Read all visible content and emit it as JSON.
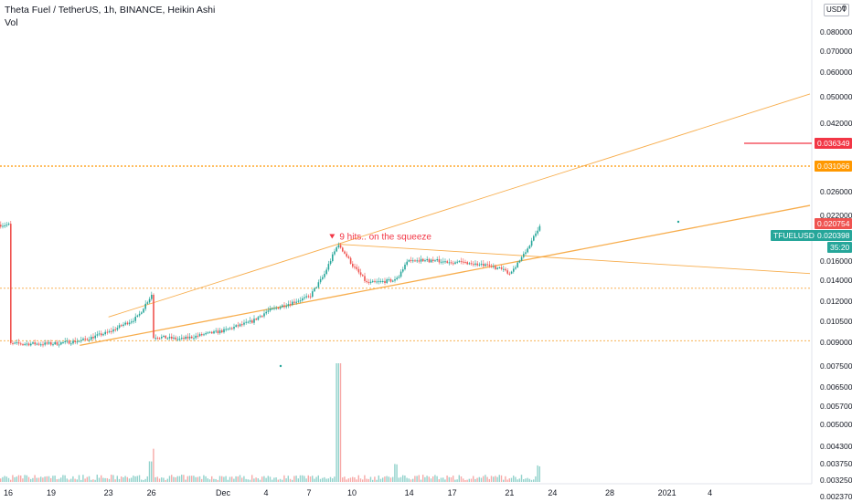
{
  "header": {
    "title": "Theta Fuel / TetherUS, 1h, BINANCE, Heikin Ashi",
    "volume_label": "Vol"
  },
  "currency_button": {
    "label": "USDT",
    "suffix": "0"
  },
  "colors": {
    "bull": "#26a69a",
    "bear": "#ef5350",
    "trendline": "#f7a53a",
    "red_level": "#f23645",
    "orange_level": "#ff9800",
    "ticker_tag": "#26a69a"
  },
  "annotation": {
    "text": "9 hits.. on the squeeze",
    "icon": "arrow-down-icon",
    "anchor_date": "Dec 9"
  },
  "price_tags": {
    "red_level": "0.036349",
    "orange_level": "0.031066",
    "last_price": "0.020754",
    "ticker": "TFUELUSDT",
    "ticker_price": "0.020398",
    "countdown": "35:20"
  },
  "chart_data": {
    "type": "candlestick",
    "symbol": "TFUELUSDT",
    "exchange": "BINANCE",
    "interval": "1h",
    "chart_style": "Heikin Ashi",
    "x_tick_labels": [
      "16",
      "19",
      "23",
      "26",
      "Dec",
      "4",
      "7",
      "10",
      "14",
      "17",
      "21",
      "24",
      "28",
      "2021",
      "4"
    ],
    "y_tick_labels": [
      "0.080000",
      "0.070000",
      "0.060000",
      "0.050000",
      "0.042000",
      "0.026000",
      "0.022000",
      "0.016000",
      "0.014000",
      "0.012000",
      "0.010500",
      "0.009000",
      "0.007500",
      "0.006500",
      "0.005700",
      "0.005000",
      "0.004300",
      "0.003750",
      "0.003250",
      "0.002370"
    ],
    "y_scale": "log",
    "price_path": [
      [
        "Nov 16",
        0.0089
      ],
      [
        "Nov 19",
        0.0089
      ],
      [
        "Nov 21",
        0.0091
      ],
      [
        "Nov 23",
        0.0097
      ],
      [
        "Nov 25",
        0.0108
      ],
      [
        "Nov 26",
        0.0126
      ],
      [
        "Nov 26",
        0.0094
      ],
      [
        "Nov 28",
        0.0092
      ],
      [
        "Dec 1",
        0.0098
      ],
      [
        "Dec 3",
        0.0105
      ],
      [
        "Dec 4",
        0.0112
      ],
      [
        "Dec 6",
        0.012
      ],
      [
        "Dec 7",
        0.0124
      ],
      [
        "Dec 8",
        0.0145
      ],
      [
        "Dec 9",
        0.018
      ],
      [
        "Dec 10",
        0.0155
      ],
      [
        "Dec 11",
        0.0137
      ],
      [
        "Dec 13",
        0.014
      ],
      [
        "Dec 14",
        0.0162
      ],
      [
        "Dec 16",
        0.016
      ],
      [
        "Dec 18",
        0.0158
      ],
      [
        "Dec 20",
        0.0153
      ],
      [
        "Dec 21",
        0.0147
      ],
      [
        "Dec 22",
        0.0168
      ],
      [
        "Dec 23",
        0.02
      ],
      [
        "Dec 23",
        0.0206
      ]
    ],
    "volume_spikes": [
      "Nov 26",
      "Dec 9",
      "Dec 13",
      "Dec 23"
    ],
    "horizontal_levels": [
      {
        "name": "red level",
        "price": 0.036349,
        "style": "solid"
      },
      {
        "name": "orange level",
        "price": 0.031066,
        "style": "dotted"
      },
      {
        "name": "upper dotted level",
        "price": 0.0132,
        "style": "dotted"
      },
      {
        "name": "lower dotted level",
        "price": 0.0091,
        "style": "dotted"
      }
    ],
    "trendlines": [
      {
        "name": "upper rising line",
        "from": [
          "Nov 23",
          0.0108
        ],
        "to": [
          "Dec 9",
          0.018
        ]
      },
      {
        "name": "lower support line",
        "from": [
          "Nov 21",
          0.0088
        ],
        "to": [
          "Dec 23",
          0.0164
        ]
      },
      {
        "name": "descending resistance line",
        "from": [
          "Dec 9",
          0.018
        ],
        "to": [
          "Dec 23",
          0.0165
        ]
      }
    ],
    "grid": false,
    "legend": "none"
  }
}
